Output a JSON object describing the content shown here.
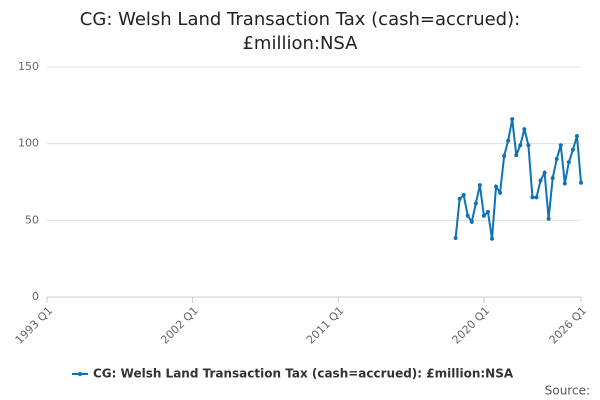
{
  "chart_data": {
    "type": "line",
    "title": "CG: Welsh Land Transaction Tax (cash=accrued): £million:NSA",
    "x": [
      2018.25,
      2018.5,
      2018.75,
      2019.0,
      2019.25,
      2019.5,
      2019.75,
      2020.0,
      2020.25,
      2020.5,
      2020.75,
      2021.0,
      2021.25,
      2021.5,
      2021.75,
      2022.0,
      2022.25,
      2022.5,
      2022.75,
      2023.0,
      2023.25,
      2023.5,
      2023.75,
      2024.0,
      2024.25,
      2024.5,
      2024.75,
      2025.0,
      2025.25,
      2025.5,
      2025.75,
      2026.0
    ],
    "series": [
      {
        "name": "CG: Welsh Land Transaction Tax (cash=accrued): £million:NSA",
        "color": "#0e73b5",
        "values": [
          38.5,
          64,
          66.5,
          53,
          49,
          61,
          73,
          53,
          55.5,
          38,
          72,
          68,
          92,
          102,
          116,
          92.5,
          99,
          109.5,
          99,
          65,
          65,
          76,
          81,
          51,
          77.5,
          90,
          99,
          74,
          88,
          96,
          105,
          74.5
        ]
      }
    ],
    "xlim": [
      1993,
      2026
    ],
    "xticks": [
      {
        "value": 1993,
        "label": "1993 Q1"
      },
      {
        "value": 2002,
        "label": "2002 Q1"
      },
      {
        "value": 2011,
        "label": "2011 Q1"
      },
      {
        "value": 2020,
        "label": "2020 Q1"
      },
      {
        "value": 2026,
        "label": "2026 Q1"
      }
    ],
    "ylim": [
      0,
      150
    ],
    "yticks": [
      0,
      50,
      100,
      150
    ],
    "grid": true,
    "source": "Source:"
  }
}
